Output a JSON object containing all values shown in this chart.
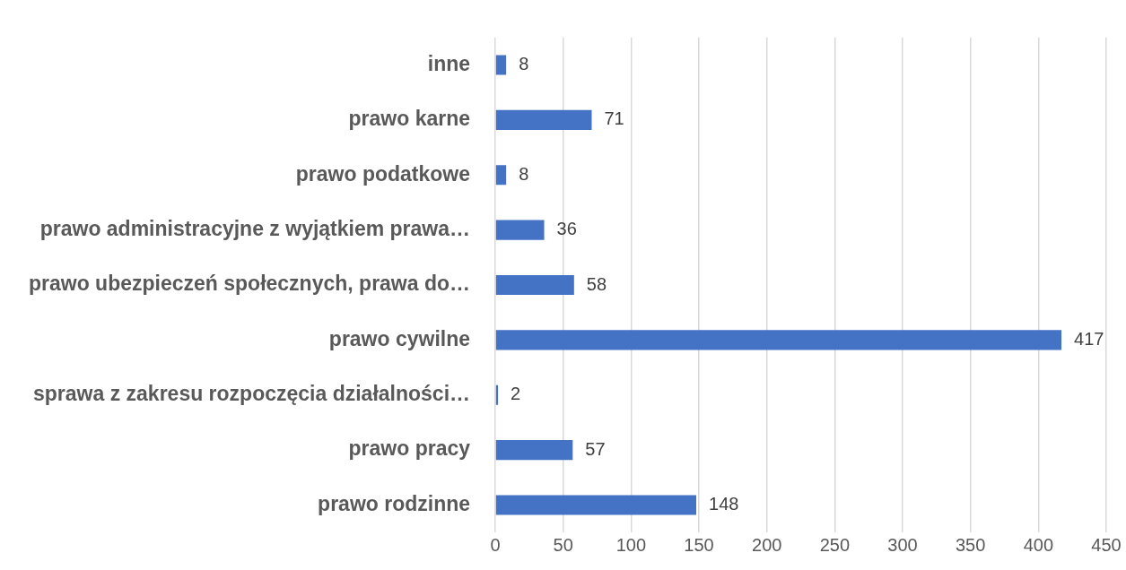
{
  "chart_data": {
    "type": "bar",
    "orientation": "horizontal",
    "categories": [
      "inne",
      "prawo karne",
      "prawo podatkowe",
      "prawo administracyjne z wyjątkiem prawa…",
      "prawo ubezpieczeń społecznych, prawa do…",
      "prawo cywilne",
      "sprawa z zakresu rozpoczęcia działalności…",
      "prawo pracy",
      "prawo rodzinne"
    ],
    "values": [
      8,
      71,
      8,
      36,
      58,
      417,
      2,
      57,
      148
    ],
    "color": "#4472c4",
    "xlim": [
      0,
      450
    ],
    "xticks": [
      0,
      50,
      100,
      150,
      200,
      250,
      300,
      350,
      400,
      450
    ],
    "grid": "x",
    "data_labels": true
  }
}
